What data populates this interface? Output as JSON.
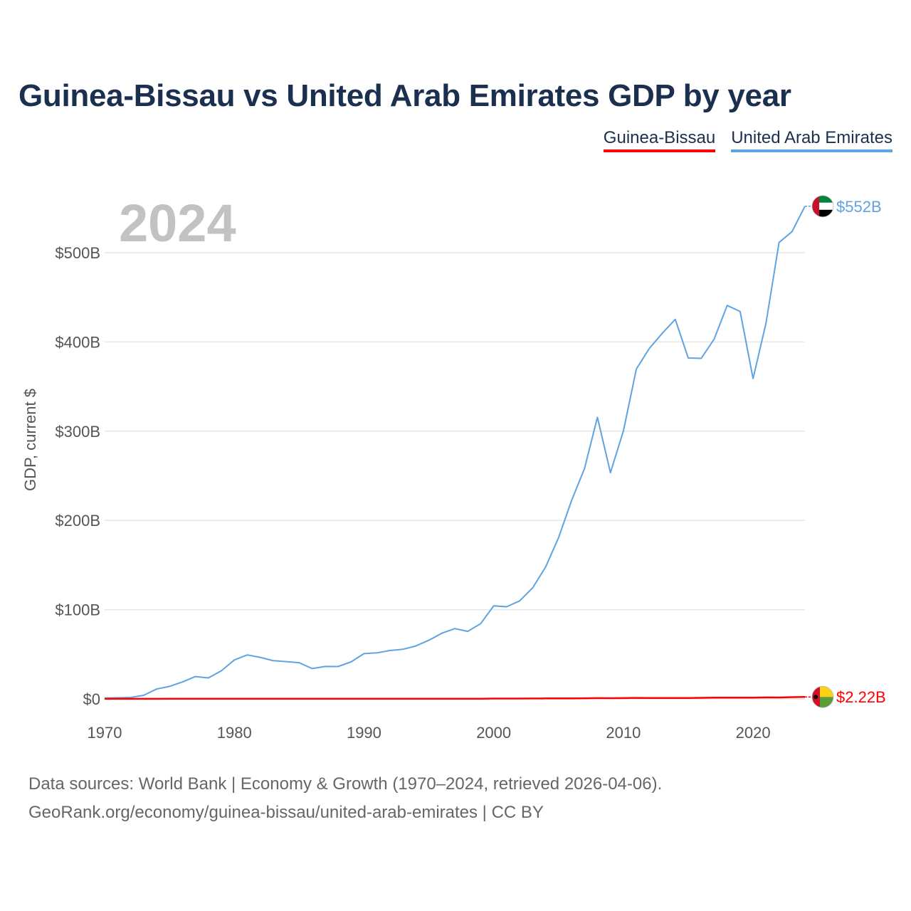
{
  "title": "Guinea-Bissau vs United Arab Emirates GDP by year",
  "legend": [
    {
      "label": "Guinea-Bissau",
      "color": "#ff0000"
    },
    {
      "label": "United Arab Emirates",
      "color": "#5fa3e0"
    }
  ],
  "footer": {
    "line1": "Data sources: World Bank | Economy & Growth (1970–2024, retrieved 2026-04-06).",
    "line2": "GeoRank.org/economy/guinea-bissau/united-arab-emirates | CC BY"
  },
  "chart_data": {
    "type": "line",
    "title": "Guinea-Bissau vs United Arab Emirates GDP by year",
    "ylabel": "GDP, current $",
    "xlabel": "",
    "current_year_label": "2024",
    "xlim": [
      1970,
      2024
    ],
    "ylim": [
      0,
      560
    ],
    "y_unit": "billion current US$",
    "x_ticks": [
      1970,
      1980,
      1990,
      2000,
      2010,
      2020
    ],
    "y_ticks": [
      0,
      100,
      200,
      300,
      400,
      500
    ],
    "y_tick_labels": [
      "$0",
      "$100B",
      "$200B",
      "$300B",
      "$400B",
      "$500B"
    ],
    "grid": true,
    "legend_position": "top-right",
    "x": [
      1970,
      1971,
      1972,
      1973,
      1974,
      1975,
      1976,
      1977,
      1978,
      1979,
      1980,
      1981,
      1982,
      1983,
      1984,
      1985,
      1986,
      1987,
      1988,
      1989,
      1990,
      1991,
      1992,
      1993,
      1994,
      1995,
      1996,
      1997,
      1998,
      1999,
      2000,
      2001,
      2002,
      2003,
      2004,
      2005,
      2006,
      2007,
      2008,
      2009,
      2010,
      2011,
      2012,
      2013,
      2014,
      2015,
      2016,
      2017,
      2018,
      2019,
      2020,
      2021,
      2022,
      2023,
      2024
    ],
    "series": [
      {
        "name": "United Arab Emirates",
        "color": "#5fa3e0",
        "end_label": "$552B",
        "flag": "uae",
        "values": [
          1.0,
          1.3,
          1.6,
          4.0,
          11.0,
          14.0,
          19.0,
          25.0,
          23.5,
          31.5,
          43.6,
          49.3,
          46.6,
          42.8,
          41.8,
          40.6,
          34.0,
          36.4,
          36.3,
          41.5,
          50.7,
          51.6,
          54.2,
          55.6,
          59.3,
          65.7,
          73.6,
          78.8,
          75.7,
          84.4,
          104.3,
          103.3,
          109.8,
          124.3,
          147.8,
          180.6,
          222.1,
          258.0,
          315.5,
          253.5,
          300.2,
          369.6,
          392.7,
          409.7,
          425.3,
          382.0,
          381.6,
          403.1,
          440.8,
          434.1,
          358.9,
          421.1,
          511.4,
          523.5,
          552.0
        ]
      },
      {
        "name": "Guinea-Bissau",
        "color": "#ff0000",
        "end_label": "$2.22B",
        "flag": "gnb",
        "values": [
          0.08,
          0.08,
          0.09,
          0.1,
          0.11,
          0.13,
          0.14,
          0.16,
          0.21,
          0.24,
          0.14,
          0.16,
          0.16,
          0.17,
          0.14,
          0.14,
          0.16,
          0.18,
          0.19,
          0.21,
          0.24,
          0.26,
          0.23,
          0.24,
          0.23,
          0.26,
          0.27,
          0.27,
          0.21,
          0.22,
          0.37,
          0.39,
          0.42,
          0.48,
          0.53,
          0.59,
          0.59,
          0.7,
          0.86,
          0.83,
          0.85,
          1.1,
          0.99,
          1.05,
          1.06,
          1.05,
          1.18,
          1.35,
          1.46,
          1.44,
          1.44,
          1.64,
          1.63,
          1.97,
          2.22
        ]
      }
    ]
  }
}
